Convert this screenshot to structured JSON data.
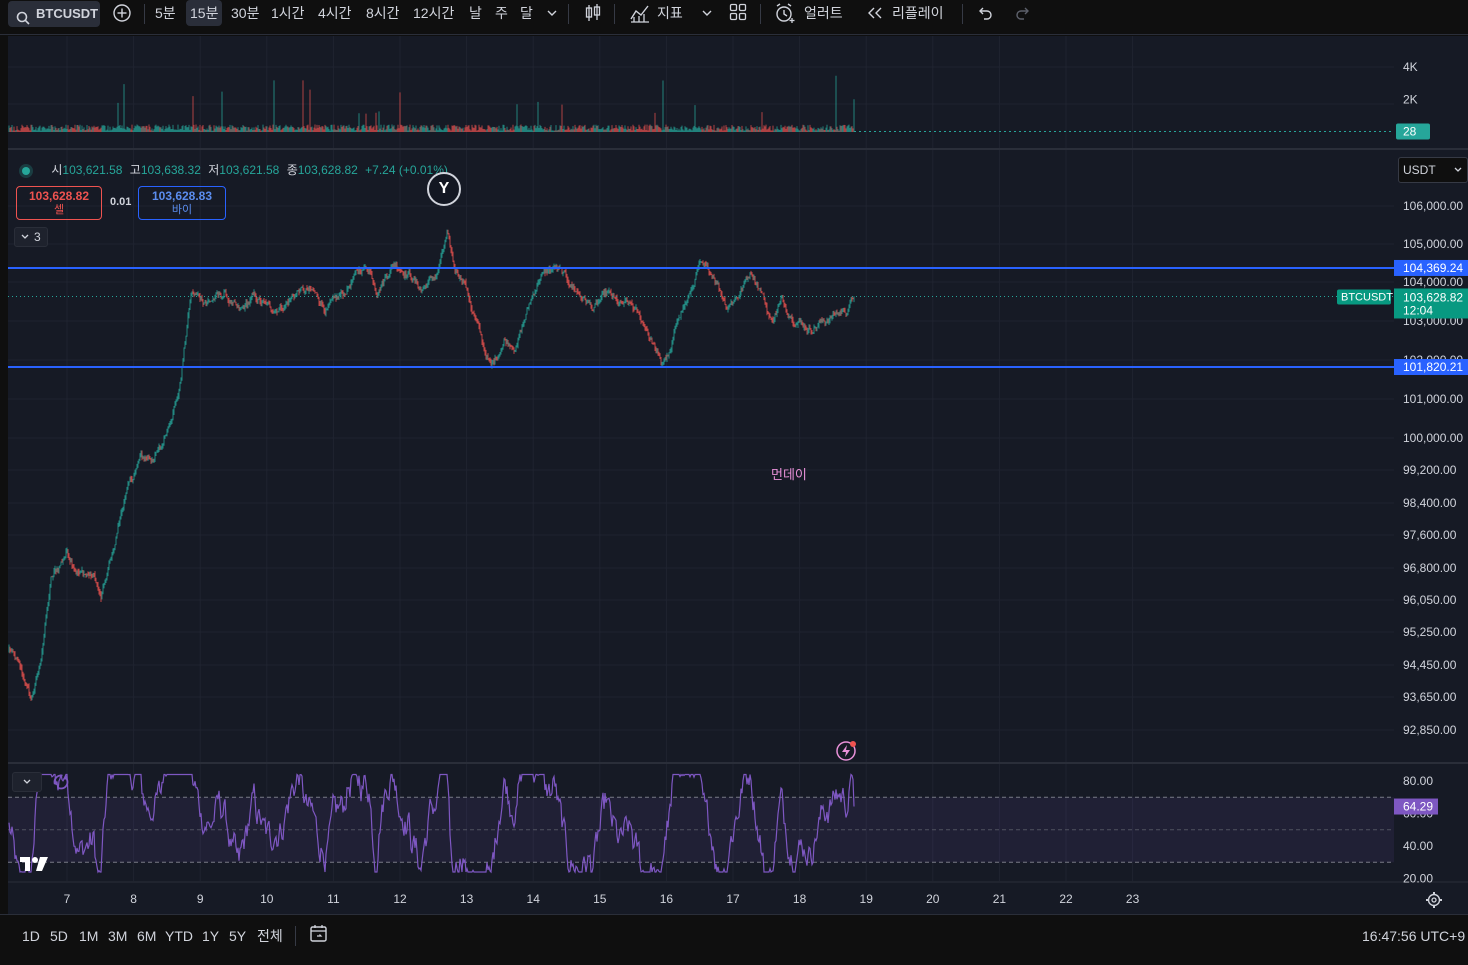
{
  "symbol": "BTCUSDT",
  "timeframes": [
    {
      "label": "5분",
      "selected": false
    },
    {
      "label": "15분",
      "selected": true
    },
    {
      "label": "30분",
      "selected": false
    },
    {
      "label": "1시간",
      "selected": false
    },
    {
      "label": "4시간",
      "selected": false
    },
    {
      "label": "8시간",
      "selected": false
    },
    {
      "label": "12시간",
      "selected": false
    },
    {
      "label": "날",
      "selected": false
    },
    {
      "label": "주",
      "selected": false
    },
    {
      "label": "달",
      "selected": false
    }
  ],
  "toolbar": {
    "indicators_label": "지표",
    "alert_label": "얼러트",
    "replay_label": "리플레이"
  },
  "icons": {
    "search": "search-icon",
    "add": "plus-circle-icon",
    "candles": "candles-icon",
    "indicators": "chart-line-icon",
    "layouts": "grid-icon",
    "alert": "alarm-clock-icon",
    "replay": "rewind-icon",
    "undo": "undo-icon",
    "redo": "redo-icon",
    "settings": "gear-icon",
    "date_range": "calendar-icon",
    "flash": "lightning-icon",
    "logo": "tradingview-logo"
  },
  "ohlc": {
    "open_label": "시",
    "open": "103,621.58",
    "high_label": "고",
    "high": "103,638.32",
    "low_label": "저",
    "low": "103,621.58",
    "close_label": "종",
    "close": "103,628.82",
    "change": "+7.24 (+0.01%)"
  },
  "trade": {
    "sell_price": "103,628.82",
    "sell_label": "셀",
    "spread": "0.01",
    "buy_price": "103,628.83",
    "buy_label": "바이"
  },
  "collapse_count": "3",
  "currency": "USDT",
  "event_badge": "Y",
  "annotation": "먼데이",
  "price_axis": [
    "106,000.00",
    "105,000.00",
    "104,000.00",
    "103,000.00",
    "102,000.00",
    "101,000.00",
    "100,000.00",
    "99,200.00",
    "98,400.00",
    "97,600.00",
    "96,800.00",
    "96,050.00",
    "95,250.00",
    "94,450.00",
    "93,650.00",
    "92,850.00"
  ],
  "price_axis_values": [
    106000,
    105000,
    104000,
    103000,
    102000,
    101000,
    100000,
    99200,
    98400,
    97600,
    96800,
    96050,
    95250,
    94450,
    93650,
    92850
  ],
  "hlines": [
    {
      "label": "104,369.24",
      "value": 104369.24
    },
    {
      "label": "101,820.21",
      "value": 101820.21
    }
  ],
  "last_price": {
    "label": "103,628.82",
    "value": 103628.82,
    "countdown": "12:04",
    "symbol_label": "BTCUSDT"
  },
  "volume_axis": [
    "4K",
    "2K"
  ],
  "volume_axis_values": [
    4000,
    2000
  ],
  "volume_last": "28",
  "rsi_axis": [
    "80.00",
    "60.00",
    "40.00",
    "20.00"
  ],
  "rsi_axis_values": [
    80,
    60,
    40,
    20
  ],
  "rsi_last": "64.29",
  "rsi_last_value": 64.29,
  "time_axis": [
    "7",
    "8",
    "9",
    "10",
    "11",
    "12",
    "13",
    "14",
    "15",
    "16",
    "17",
    "18",
    "19",
    "20",
    "21",
    "22",
    "23"
  ],
  "ranges": [
    "1D",
    "5D",
    "1M",
    "3M",
    "6M",
    "YTD",
    "1Y",
    "5Y",
    "전체"
  ],
  "clock": "16:47:56 UTC+9",
  "colors": {
    "up": "#26a69a",
    "down": "#ef5350",
    "hline": "#2962ff",
    "rsi": "#7e57c2",
    "background": "#161a25",
    "pink": "#e991d9"
  },
  "chart_data": {
    "type": "candlestick",
    "interval": "15m",
    "price_anchors": [
      [
        0,
        94850
      ],
      [
        10,
        94400
      ],
      [
        22,
        93600
      ],
      [
        30,
        94300
      ],
      [
        42,
        96500
      ],
      [
        58,
        97200
      ],
      [
        70,
        96700
      ],
      [
        85,
        96600
      ],
      [
        92,
        96050
      ],
      [
        105,
        97300
      ],
      [
        115,
        98500
      ],
      [
        132,
        99500
      ],
      [
        142,
        99500
      ],
      [
        152,
        99700
      ],
      [
        162,
        100600
      ],
      [
        170,
        101200
      ],
      [
        182,
        103700
      ],
      [
        200,
        103500
      ],
      [
        215,
        103700
      ],
      [
        230,
        103200
      ],
      [
        245,
        103600
      ],
      [
        262,
        103300
      ],
      [
        275,
        103400
      ],
      [
        290,
        103800
      ],
      [
        305,
        103700
      ],
      [
        318,
        103300
      ],
      [
        335,
        103700
      ],
      [
        350,
        104300
      ],
      [
        360,
        104400
      ],
      [
        368,
        103800
      ],
      [
        385,
        104500
      ],
      [
        400,
        104200
      ],
      [
        412,
        103800
      ],
      [
        428,
        104200
      ],
      [
        438,
        105200
      ],
      [
        446,
        104300
      ],
      [
        455,
        104100
      ],
      [
        462,
        103400
      ],
      [
        475,
        102300
      ],
      [
        482,
        101800
      ],
      [
        495,
        102500
      ],
      [
        508,
        102400
      ],
      [
        520,
        103400
      ],
      [
        530,
        104100
      ],
      [
        546,
        104400
      ],
      [
        560,
        104000
      ],
      [
        570,
        103700
      ],
      [
        585,
        103300
      ],
      [
        598,
        103700
      ],
      [
        610,
        103400
      ],
      [
        622,
        103400
      ],
      [
        638,
        102800
      ],
      [
        652,
        101900
      ],
      [
        662,
        102200
      ],
      [
        670,
        103200
      ],
      [
        680,
        103600
      ],
      [
        690,
        104400
      ],
      [
        705,
        104200
      ],
      [
        718,
        103400
      ],
      [
        730,
        103700
      ],
      [
        742,
        104300
      ],
      [
        752,
        103800
      ],
      [
        762,
        103000
      ],
      [
        772,
        103500
      ],
      [
        785,
        103100
      ],
      [
        800,
        102800
      ],
      [
        815,
        103000
      ],
      [
        828,
        103200
      ],
      [
        838,
        103300
      ],
      [
        845,
        103628.82
      ]
    ]
  }
}
